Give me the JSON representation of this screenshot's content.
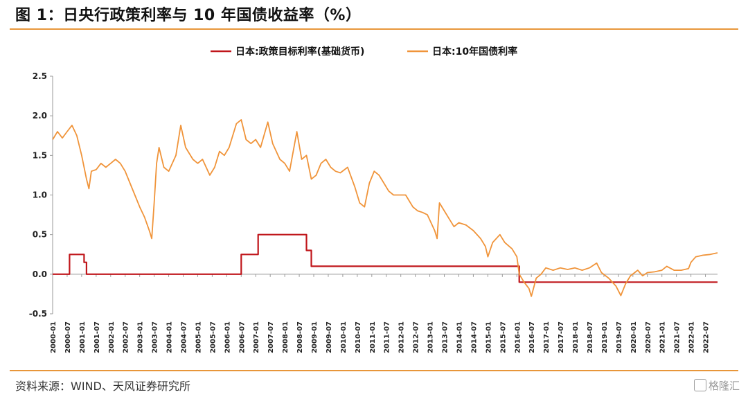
{
  "title": "图 1：日央行政策利率与 10 年国债收益率（%）",
  "source": "资料来源：WIND、天风证券研究所",
  "watermark": "格隆汇",
  "colors": {
    "policy": "#c0161b",
    "bond": "#f0943a",
    "accent": "#e8963a"
  },
  "chart_data": {
    "type": "line",
    "ylim": [
      -0.5,
      2.5
    ],
    "yticks": [
      "2.5",
      "2.0",
      "1.5",
      "1.0",
      "0.5",
      "0.0",
      "-0.5"
    ],
    "xlim": [
      "2000-01",
      "2022-12"
    ],
    "xticks": [
      "2000-01",
      "2000-07",
      "2001-01",
      "2001-07",
      "2002-01",
      "2002-07",
      "2003-01",
      "2003-07",
      "2004-01",
      "2004-07",
      "2005-01",
      "2005-07",
      "2006-01",
      "2006-07",
      "2007-01",
      "2007-07",
      "2008-01",
      "2008-07",
      "2009-01",
      "2009-07",
      "2010-01",
      "2010-07",
      "2011-01",
      "2011-07",
      "2012-01",
      "2012-07",
      "2013-01",
      "2013-07",
      "2014-01",
      "2014-07",
      "2015-01",
      "2015-07",
      "2016-01",
      "2016-07",
      "2017-01",
      "2017-07",
      "2018-01",
      "2018-07",
      "2019-01",
      "2019-07",
      "2020-01",
      "2020-07",
      "2021-01",
      "2021-07",
      "2022-01",
      "2022-07"
    ],
    "legend_position": "top-center",
    "series": [
      {
        "name": "日本:政策目标利率(基础货币)",
        "color": "#c0161b",
        "step": true,
        "points": [
          [
            "2000-01",
            0.0
          ],
          [
            "2000-08",
            0.0
          ],
          [
            "2000-08",
            0.25
          ],
          [
            "2001-02",
            0.25
          ],
          [
            "2001-02",
            0.15
          ],
          [
            "2001-03",
            0.15
          ],
          [
            "2001-03",
            0.0
          ],
          [
            "2006-07",
            0.0
          ],
          [
            "2006-07",
            0.25
          ],
          [
            "2007-02",
            0.25
          ],
          [
            "2007-02",
            0.5
          ],
          [
            "2008-10",
            0.5
          ],
          [
            "2008-10",
            0.3
          ],
          [
            "2008-12",
            0.3
          ],
          [
            "2008-12",
            0.1
          ],
          [
            "2016-02",
            0.1
          ],
          [
            "2016-02",
            -0.1
          ],
          [
            "2022-12",
            -0.1
          ]
        ]
      },
      {
        "name": "日本:10年国债利率",
        "color": "#f0943a",
        "points": [
          [
            "2000-01",
            1.7
          ],
          [
            "2000-03",
            1.8
          ],
          [
            "2000-05",
            1.72
          ],
          [
            "2000-07",
            1.8
          ],
          [
            "2000-09",
            1.88
          ],
          [
            "2000-11",
            1.75
          ],
          [
            "2001-01",
            1.5
          ],
          [
            "2001-03",
            1.2
          ],
          [
            "2001-04",
            1.08
          ],
          [
            "2001-05",
            1.3
          ],
          [
            "2001-07",
            1.32
          ],
          [
            "2001-09",
            1.4
          ],
          [
            "2001-11",
            1.35
          ],
          [
            "2002-01",
            1.4
          ],
          [
            "2002-03",
            1.45
          ],
          [
            "2002-05",
            1.4
          ],
          [
            "2002-07",
            1.3
          ],
          [
            "2002-09",
            1.15
          ],
          [
            "2002-11",
            1.0
          ],
          [
            "2003-01",
            0.85
          ],
          [
            "2003-03",
            0.72
          ],
          [
            "2003-05",
            0.55
          ],
          [
            "2003-06",
            0.45
          ],
          [
            "2003-07",
            0.9
          ],
          [
            "2003-08",
            1.4
          ],
          [
            "2003-09",
            1.6
          ],
          [
            "2003-11",
            1.35
          ],
          [
            "2004-01",
            1.3
          ],
          [
            "2004-04",
            1.5
          ],
          [
            "2004-06",
            1.88
          ],
          [
            "2004-08",
            1.6
          ],
          [
            "2004-11",
            1.45
          ],
          [
            "2005-01",
            1.4
          ],
          [
            "2005-03",
            1.45
          ],
          [
            "2005-06",
            1.25
          ],
          [
            "2005-08",
            1.35
          ],
          [
            "2005-10",
            1.55
          ],
          [
            "2005-12",
            1.5
          ],
          [
            "2006-02",
            1.6
          ],
          [
            "2006-05",
            1.9
          ],
          [
            "2006-07",
            1.95
          ],
          [
            "2006-09",
            1.7
          ],
          [
            "2006-11",
            1.65
          ],
          [
            "2007-01",
            1.7
          ],
          [
            "2007-03",
            1.6
          ],
          [
            "2007-06",
            1.92
          ],
          [
            "2007-08",
            1.65
          ],
          [
            "2007-11",
            1.45
          ],
          [
            "2008-01",
            1.4
          ],
          [
            "2008-03",
            1.3
          ],
          [
            "2008-06",
            1.8
          ],
          [
            "2008-08",
            1.45
          ],
          [
            "2008-10",
            1.5
          ],
          [
            "2008-12",
            1.2
          ],
          [
            "2009-02",
            1.25
          ],
          [
            "2009-04",
            1.4
          ],
          [
            "2009-06",
            1.45
          ],
          [
            "2009-08",
            1.35
          ],
          [
            "2009-10",
            1.3
          ],
          [
            "2009-12",
            1.28
          ],
          [
            "2010-03",
            1.35
          ],
          [
            "2010-06",
            1.1
          ],
          [
            "2010-08",
            0.9
          ],
          [
            "2010-10",
            0.85
          ],
          [
            "2010-12",
            1.15
          ],
          [
            "2011-02",
            1.3
          ],
          [
            "2011-04",
            1.25
          ],
          [
            "2011-06",
            1.15
          ],
          [
            "2011-08",
            1.05
          ],
          [
            "2011-10",
            1.0
          ],
          [
            "2011-12",
            1.0
          ],
          [
            "2012-03",
            1.0
          ],
          [
            "2012-06",
            0.85
          ],
          [
            "2012-08",
            0.8
          ],
          [
            "2012-10",
            0.78
          ],
          [
            "2012-12",
            0.75
          ],
          [
            "2013-03",
            0.55
          ],
          [
            "2013-04",
            0.45
          ],
          [
            "2013-05",
            0.9
          ],
          [
            "2013-07",
            0.8
          ],
          [
            "2013-09",
            0.7
          ],
          [
            "2013-11",
            0.6
          ],
          [
            "2014-01",
            0.65
          ],
          [
            "2014-04",
            0.62
          ],
          [
            "2014-07",
            0.55
          ],
          [
            "2014-10",
            0.45
          ],
          [
            "2014-12",
            0.35
          ],
          [
            "2015-01",
            0.22
          ],
          [
            "2015-03",
            0.4
          ],
          [
            "2015-06",
            0.5
          ],
          [
            "2015-08",
            0.4
          ],
          [
            "2015-11",
            0.32
          ],
          [
            "2016-01",
            0.22
          ],
          [
            "2016-02",
            0.0
          ],
          [
            "2016-04",
            -0.1
          ],
          [
            "2016-06",
            -0.18
          ],
          [
            "2016-07",
            -0.28
          ],
          [
            "2016-09",
            -0.05
          ],
          [
            "2016-11",
            0.0
          ],
          [
            "2017-01",
            0.08
          ],
          [
            "2017-04",
            0.05
          ],
          [
            "2017-07",
            0.08
          ],
          [
            "2017-10",
            0.06
          ],
          [
            "2018-01",
            0.08
          ],
          [
            "2018-04",
            0.05
          ],
          [
            "2018-07",
            0.08
          ],
          [
            "2018-10",
            0.14
          ],
          [
            "2018-12",
            0.02
          ],
          [
            "2019-03",
            -0.05
          ],
          [
            "2019-06",
            -0.15
          ],
          [
            "2019-08",
            -0.27
          ],
          [
            "2019-10",
            -0.12
          ],
          [
            "2019-12",
            -0.02
          ],
          [
            "2020-03",
            0.05
          ],
          [
            "2020-05",
            -0.02
          ],
          [
            "2020-07",
            0.02
          ],
          [
            "2020-10",
            0.03
          ],
          [
            "2021-01",
            0.05
          ],
          [
            "2021-03",
            0.1
          ],
          [
            "2021-06",
            0.05
          ],
          [
            "2021-09",
            0.05
          ],
          [
            "2021-12",
            0.07
          ],
          [
            "2022-01",
            0.15
          ],
          [
            "2022-03",
            0.22
          ],
          [
            "2022-06",
            0.24
          ],
          [
            "2022-09",
            0.25
          ],
          [
            "2022-12",
            0.27
          ]
        ]
      }
    ]
  }
}
